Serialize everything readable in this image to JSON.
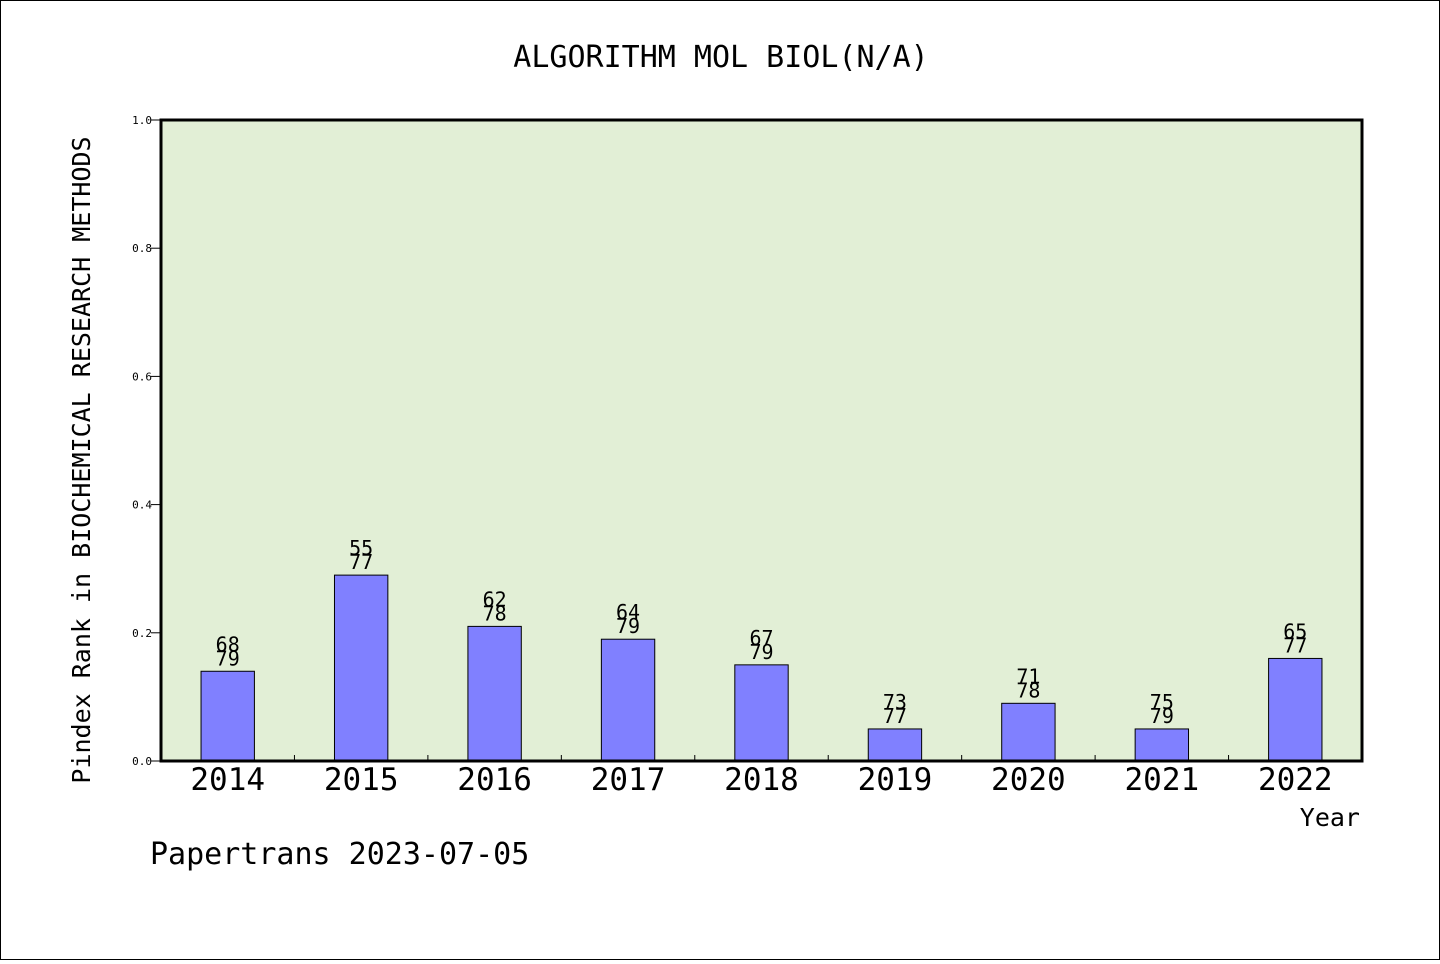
{
  "chart_data": {
    "type": "bar",
    "title": "ALGORITHM MOL BIOL(N/A)",
    "xlabel": "Year",
    "ylabel": "Pindex Rank in BIOCHEMICAL RESEARCH METHODS",
    "ylim": [
      0,
      1.0
    ],
    "yticks": [
      "0.0",
      "0.2",
      "0.4",
      "0.6",
      "0.8",
      "1.0"
    ],
    "categories": [
      "2014",
      "2015",
      "2016",
      "2017",
      "2018",
      "2019",
      "2020",
      "2021",
      "2022"
    ],
    "values": [
      0.14,
      0.29,
      0.21,
      0.19,
      0.15,
      0.05,
      0.09,
      0.05,
      0.16
    ],
    "ranks": [
      "68",
      "55",
      "62",
      "64",
      "67",
      "73",
      "71",
      "75",
      "65"
    ],
    "totals": [
      "79",
      "77",
      "78",
      "79",
      "79",
      "77",
      "78",
      "79",
      "77"
    ],
    "grid": false,
    "colors": {
      "plot_background": "#e2efd6",
      "bar_fill": "#8080ff",
      "bar_stroke": "#000000"
    }
  },
  "footer": {
    "watermark": "Papertrans 2023-07-05"
  }
}
